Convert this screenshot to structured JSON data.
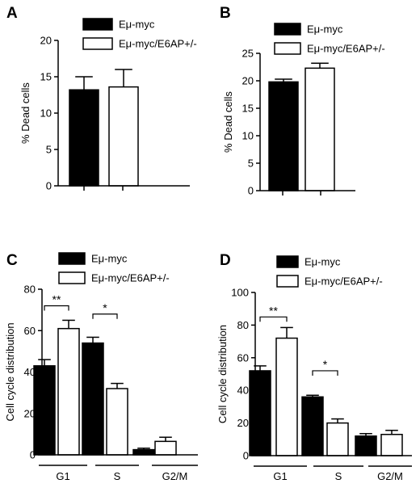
{
  "figure": {
    "panels": [
      "A",
      "B",
      "C",
      "D"
    ]
  },
  "chart_data": [
    {
      "panel": "A",
      "type": "bar",
      "ylabel": "% Dead cells",
      "ylim": [
        0,
        20
      ],
      "yticks": [
        0,
        5,
        10,
        15,
        20
      ],
      "legend": {
        "placement": "top-right"
      },
      "series": [
        {
          "name": "Eμ-myc",
          "fill": "#000000",
          "values": [
            13.2
          ],
          "errors": [
            1.8
          ]
        },
        {
          "name": "Eμ-myc/E6AP+/-",
          "fill": "#ffffff",
          "values": [
            13.6
          ],
          "errors": [
            2.4
          ]
        }
      ]
    },
    {
      "panel": "B",
      "type": "bar",
      "ylabel": "% Dead cells",
      "ylim": [
        0,
        25
      ],
      "yticks": [
        0,
        5,
        10,
        15,
        20,
        25
      ],
      "legend": {
        "placement": "top-right"
      },
      "series": [
        {
          "name": "Eμ-myc",
          "fill": "#000000",
          "values": [
            19.8
          ],
          "errors": [
            0.5
          ]
        },
        {
          "name": "Eμ-myc/E6AP+/-",
          "fill": "#ffffff",
          "values": [
            22.3
          ],
          "errors": [
            0.9
          ]
        }
      ]
    },
    {
      "panel": "C",
      "type": "bar",
      "ylabel": "Cell cycle distribution",
      "ylim": [
        0,
        80
      ],
      "yticks": [
        0,
        20,
        40,
        60,
        80
      ],
      "categories": [
        "G1",
        "S",
        "G2/M"
      ],
      "legend": {
        "placement": "top"
      },
      "series": [
        {
          "name": "Eμ-myc",
          "fill": "#000000",
          "values": [
            43,
            54,
            2.5
          ],
          "errors": [
            3,
            2.8,
            0.7
          ]
        },
        {
          "name": "Eμ-myc/E6AP+/-",
          "fill": "#ffffff",
          "values": [
            61,
            32,
            6.5
          ],
          "errors": [
            4,
            2.5,
            2
          ]
        }
      ],
      "annotations": [
        {
          "category": "G1",
          "text": "**",
          "at": 72
        },
        {
          "category": "S",
          "text": "*",
          "at": 68
        }
      ]
    },
    {
      "panel": "D",
      "type": "bar",
      "ylabel": "Cell cycle distribution",
      "ylim": [
        0,
        100
      ],
      "yticks": [
        0,
        20,
        40,
        60,
        80,
        100
      ],
      "categories": [
        "G1",
        "S",
        "G2/M"
      ],
      "legend": {
        "placement": "top"
      },
      "series": [
        {
          "name": "Eμ-myc",
          "fill": "#000000",
          "values": [
            52,
            36,
            12
          ],
          "errors": [
            3,
            1,
            1.5
          ]
        },
        {
          "name": "Eμ-myc/E6AP+/-",
          "fill": "#ffffff",
          "values": [
            72,
            20,
            13
          ],
          "errors": [
            6.5,
            2.5,
            2.5
          ]
        }
      ],
      "annotations": [
        {
          "category": "G1",
          "text": "**",
          "at": 85
        },
        {
          "category": "S",
          "text": "*",
          "at": 52
        }
      ]
    }
  ]
}
